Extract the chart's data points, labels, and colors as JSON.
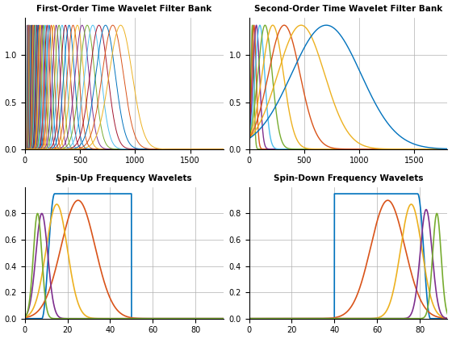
{
  "title1": "First-Order Time Wavelet Filter Bank",
  "title2": "Second-Order Time Wavelet Filter Bank",
  "title3": "Spin-Up Frequency Wavelets",
  "title4": "Spin-Down Frequency Wavelets",
  "xlim_time": [
    0,
    1800
  ],
  "ylim_time": [
    0,
    1.4
  ],
  "xlim_freq": [
    -2,
    93
  ],
  "ylim_freq": [
    -0.02,
    1.0
  ],
  "background": "#ffffff",
  "grid_color": "#b0b0b0",
  "matlab_colors": [
    "#0072BD",
    "#D95319",
    "#EDB120",
    "#7E2F8E",
    "#77AC30",
    "#4DBEEE",
    "#A2142F"
  ]
}
